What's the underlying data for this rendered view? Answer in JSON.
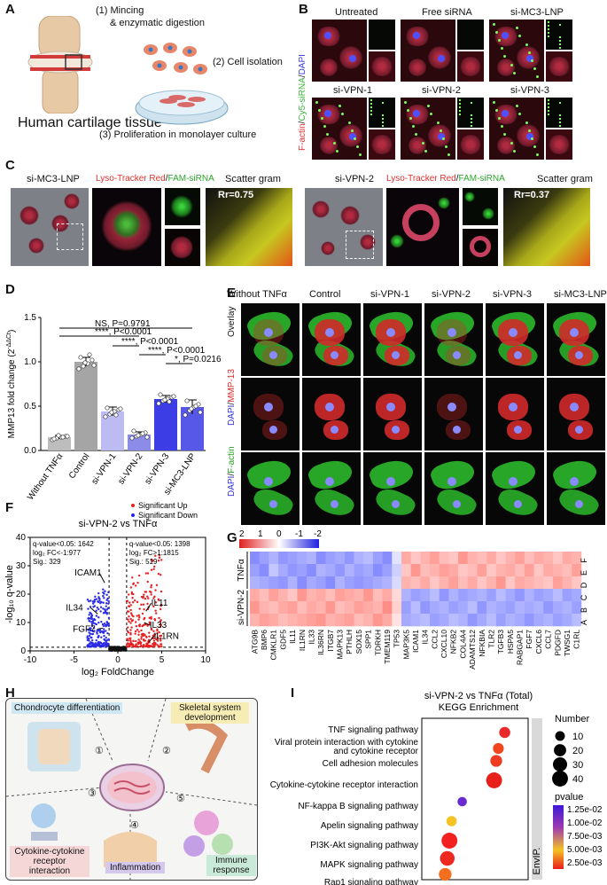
{
  "panels": {
    "A": {
      "label": "A",
      "steps": [
        "(1) Mincing",
        "& enzymatic digestion",
        "(2) Cell isolation",
        "(3) Proliferation in monolayer culture"
      ],
      "tissue_label": "Human cartilage tissue"
    },
    "B": {
      "label": "B",
      "columns_row1": [
        "Untreated",
        "Free siRNA",
        "si-MC3-LNP"
      ],
      "columns_row2": [
        "si-VPN-1",
        "si-VPN-2",
        "si-VPN-3"
      ],
      "side_label_parts": [
        "F-actin",
        "/",
        "Cy5-siRNA",
        "/",
        "DAPI"
      ]
    },
    "C": {
      "label": "C",
      "left_title": "si-MC3-LNP",
      "right_title": "si-VPN-2",
      "stain_label_parts": [
        "Lyso-Tracker Red",
        "/",
        "FAM-siRNA"
      ],
      "scatter_title": "Scatter gram",
      "rr_left": "Rr=0.75",
      "rr_right": "Rr=0.37"
    },
    "D": {
      "label": "D",
      "stats": [
        "NS, P=0.9791",
        "****, P<0.0001",
        "****, P<0.0001",
        "****, P<0.0001",
        "*, P=0.0216"
      ]
    },
    "E": {
      "label": "E",
      "columns": [
        "Without TNFα",
        "Control",
        "si-VPN-1",
        "si-VPN-2",
        "si-VPN-3",
        "si-MC3-LNP"
      ],
      "rows": [
        "Overlay",
        "DAPI/MMP-13",
        "DAPI/F-actin"
      ],
      "row2_parts": [
        "DAPI",
        "/",
        "MMP-13"
      ],
      "row3_parts": [
        "DAPI",
        "/",
        "F-actin"
      ]
    },
    "F": {
      "label": "F",
      "title": "si-VPN-2 vs TNFα",
      "legend_up": "Significant Up",
      "legend_down": "Significant  Down",
      "left_stats": [
        "q-value<0.05: 1642",
        "log₂ FC<-1:977",
        "Sig.: 329"
      ],
      "right_stats": [
        "q-value<0.05: 1398",
        "log₂ FC>1:1815",
        "Sig.: 519"
      ],
      "genes": [
        "ICAM1",
        "IL34",
        "FGF7",
        "IL11",
        "IL33",
        "IL1RN"
      ]
    },
    "G": {
      "label": "G",
      "scale_ticks": [
        "2",
        "1",
        "0",
        "-1",
        "-2"
      ],
      "group_tnf": "TNFα",
      "group_vpn": "si-VPN-2",
      "row_letters": [
        "F",
        "E",
        "D",
        "C",
        "B",
        "A"
      ],
      "genes": [
        "ATG9B",
        "BMP6",
        "CMKLR1",
        "GDF5",
        "IL11",
        "IL1RN",
        "IL33",
        "IL36RN",
        "ITGB7",
        "MAPK13",
        "PTHLH",
        "SOX15",
        "SPP1",
        "TDRKH",
        "TMEM119",
        "TP53",
        "MAP3K5",
        "ICAM1",
        "IL34",
        "CCL2",
        "CXCL10",
        "NFKB2",
        "COL4A4",
        "ADAMTS12",
        "NFKBIA",
        "TLR2",
        "TGFB3",
        "HSPA5",
        "RABGAP1",
        "FGF7",
        "CXCL6",
        "CCL7",
        "PDGFD",
        "TWSG1",
        "C1RL"
      ]
    },
    "H": {
      "label": "H",
      "items": [
        "Chondrocyte differentiation",
        "Skeletal system development",
        "Cytokine-cytokine receptor interaction",
        "Inflammation",
        "Immune response"
      ],
      "numbers": [
        "①",
        "②",
        "③",
        "④",
        "⑤"
      ]
    },
    "I": {
      "label": "I",
      "title1": "si-VPN-2 vs TNFα (Total)",
      "title2": "KEGG Enrichment",
      "category": "EnvIP.",
      "size_legend_title": "Number",
      "color_legend_title": "pvalue"
    }
  },
  "chart_data": [
    {
      "type": "bar",
      "panel": "D",
      "categories": [
        "Without TNFα",
        "Control",
        "si-VPN-1",
        "si-VPN-2",
        "si-VPN-3",
        "si-MC3-LNP"
      ],
      "values": [
        0.15,
        1.0,
        0.44,
        0.18,
        0.58,
        0.49
      ],
      "errors": [
        0.02,
        0.05,
        0.05,
        0.03,
        0.04,
        0.08
      ],
      "colors": [
        "#bdbdbd",
        "#a5a5a5",
        "#bcbcf2",
        "#8c8ce8",
        "#3d3de6",
        "#5757e8"
      ],
      "points": [
        [
          0.12,
          0.14,
          0.15,
          0.16,
          0.13,
          0.17,
          0.15,
          0.16
        ],
        [
          0.92,
          0.95,
          0.98,
          1.02,
          1.05,
          0.99,
          1.08,
          0.96
        ],
        [
          0.38,
          0.41,
          0.44,
          0.46,
          0.48,
          0.43,
          0.4,
          0.47
        ],
        [
          0.14,
          0.16,
          0.18,
          0.2,
          0.22,
          0.17,
          0.19,
          0.15
        ],
        [
          0.53,
          0.56,
          0.58,
          0.6,
          0.63,
          0.57,
          0.55,
          0.61
        ],
        [
          0.4,
          0.45,
          0.49,
          0.52,
          0.56,
          0.47,
          0.5,
          0.43
        ]
      ],
      "ylabel": "MMP13 fold change (2",
      "ylabel_sup": "-ΔΔCt",
      "ylabel_end": ")",
      "ylim": [
        0,
        1.5
      ],
      "yticks": [
        "0.0",
        "0.5",
        "1.0",
        "1.5"
      ]
    },
    {
      "type": "scatter",
      "panel": "F",
      "xlabel": "log₂ FoldChange",
      "ylabel": "-log₁₀ q-value",
      "xlim": [
        -10,
        10
      ],
      "ylim": [
        0,
        40
      ],
      "xticks": [
        "-10",
        "-5",
        "0",
        "5",
        "10"
      ],
      "yticks": [
        "0",
        "10",
        "20",
        "30",
        "40"
      ],
      "labeled_points": [
        {
          "name": "ICAM1",
          "x": -1.5,
          "y": 24
        },
        {
          "name": "IL34",
          "x": -2.3,
          "y": 13
        },
        {
          "name": "FGF7",
          "x": -1.7,
          "y": 8
        },
        {
          "name": "IL11",
          "x": 3.2,
          "y": 14
        },
        {
          "name": "IL33",
          "x": 3.0,
          "y": 10
        },
        {
          "name": "IL1RN",
          "x": 3.5,
          "y": 3
        }
      ]
    },
    {
      "type": "heatmap",
      "panel": "G",
      "note": "rows top-to-bottom F,E,D,C,B,A; columns as genes list",
      "values": [
        [
          -1.2,
          -1.0,
          -0.8,
          -1.1,
          -1.0,
          -0.9,
          -0.8,
          -1.2,
          -1.0,
          -0.9,
          -1.1,
          -0.8,
          -0.7,
          -1.0,
          -1.2,
          -0.3,
          0.9,
          0.6,
          0.8,
          1.0,
          0.7,
          0.6,
          1.1,
          0.8,
          0.7,
          0.9,
          0.6,
          0.8,
          1.0,
          0.7,
          0.9,
          0.8,
          0.6,
          0.9,
          0.8
        ],
        [
          -1.0,
          -1.2,
          -0.6,
          -0.9,
          -1.1,
          -1.0,
          -1.2,
          -0.8,
          -0.9,
          -1.1,
          -0.8,
          -1.0,
          -0.9,
          -1.2,
          -1.0,
          -0.5,
          0.6,
          1.1,
          0.7,
          0.8,
          1.0,
          0.9,
          0.6,
          0.7,
          1.0,
          0.6,
          0.8,
          0.9,
          0.7,
          1.0,
          0.6,
          0.9,
          0.8,
          0.7,
          1.0
        ],
        [
          -0.8,
          -0.9,
          -1.0,
          -1.1,
          -0.8,
          -1.2,
          -0.9,
          -1.0,
          -1.2,
          -0.8,
          -1.0,
          -1.1,
          -1.0,
          -0.9,
          -0.8,
          -0.4,
          0.8,
          0.7,
          0.9,
          0.6,
          0.8,
          1.0,
          0.7,
          0.9,
          0.6,
          0.8,
          1.1,
          0.6,
          0.9,
          0.8,
          0.7,
          0.6,
          1.0,
          0.8,
          0.6
        ],
        [
          0.9,
          0.7,
          1.0,
          0.8,
          0.6,
          1.1,
          0.8,
          0.9,
          0.7,
          1.0,
          0.9,
          0.8,
          1.1,
          0.7,
          0.9,
          0.4,
          -0.8,
          -1.0,
          -0.9,
          -0.7,
          -1.1,
          -0.8,
          -1.0,
          -0.9,
          -0.8,
          -1.0,
          -0.7,
          -0.9,
          -1.1,
          -0.8,
          -1.0,
          -0.9,
          -0.7,
          -1.0,
          -0.9
        ],
        [
          1.1,
          0.8,
          0.7,
          0.9,
          1.0,
          0.7,
          0.9,
          0.8,
          1.1,
          0.7,
          0.8,
          1.0,
          0.9,
          0.8,
          1.2,
          0.5,
          -1.0,
          -0.7,
          -1.1,
          -0.9,
          -0.8,
          -1.0,
          -0.9,
          -0.7,
          -1.1,
          -0.8,
          -0.9,
          -1.0,
          -0.8,
          -0.9,
          -0.8,
          -1.1,
          -0.9,
          -0.8,
          -1.0
        ],
        [
          0.8,
          1.0,
          0.9,
          0.7,
          0.8,
          0.9,
          1.0,
          1.1,
          0.8,
          0.9,
          1.0,
          0.7,
          0.8,
          1.1,
          0.9,
          0.3,
          -0.9,
          -0.8,
          -0.7,
          -1.0,
          -0.9,
          -0.7,
          -0.8,
          -1.1,
          -0.9,
          -0.7,
          -1.0,
          -0.8,
          -0.9,
          -1.1,
          -0.9,
          -0.8,
          -1.0,
          -0.9,
          -0.7
        ]
      ]
    },
    {
      "type": "scatter",
      "panel": "I",
      "terms": [
        "TNF signaling pathway",
        "Viral protein interaction with cytokine",
        "and cytokine receptor",
        "Cell adhesion molecules",
        "Cytokine-cytokine receptor interaction",
        "NF-kappa B signaling pathway",
        "Apelin signaling pathway",
        "PI3K-Akt signaling pathway",
        "MAPK signaling pathway",
        "Rap1 signaling pathway"
      ],
      "points": [
        {
          "term_index": 0,
          "x": 0.78,
          "number": 15,
          "color": "#e8282a"
        },
        {
          "term_index": 1,
          "x": 0.72,
          "number": 14,
          "color": "#f0451f"
        },
        {
          "term_index": 3,
          "x": 0.7,
          "number": 18,
          "color": "#ee3a20"
        },
        {
          "term_index": 4,
          "x": 0.68,
          "number": 40,
          "color": "#e8201a"
        },
        {
          "term_index": 5,
          "x": 0.38,
          "number": 9,
          "color": "#6a2ad2"
        },
        {
          "term_index": 6,
          "x": 0.28,
          "number": 12,
          "color": "#f5c423"
        },
        {
          "term_index": 7,
          "x": 0.26,
          "number": 40,
          "color": "#f22020"
        },
        {
          "term_index": 8,
          "x": 0.24,
          "number": 32,
          "color": "#ef2820"
        },
        {
          "term_index": 9,
          "x": 0.22,
          "number": 22,
          "color": "#f46e1d"
        }
      ],
      "size_legend": [
        "10",
        "20",
        "30",
        "40"
      ],
      "color_legend": [
        "1.25e-02",
        "1.00e-02",
        "7.50e-03",
        "5.00e-03",
        "2.50e-03"
      ]
    }
  ]
}
